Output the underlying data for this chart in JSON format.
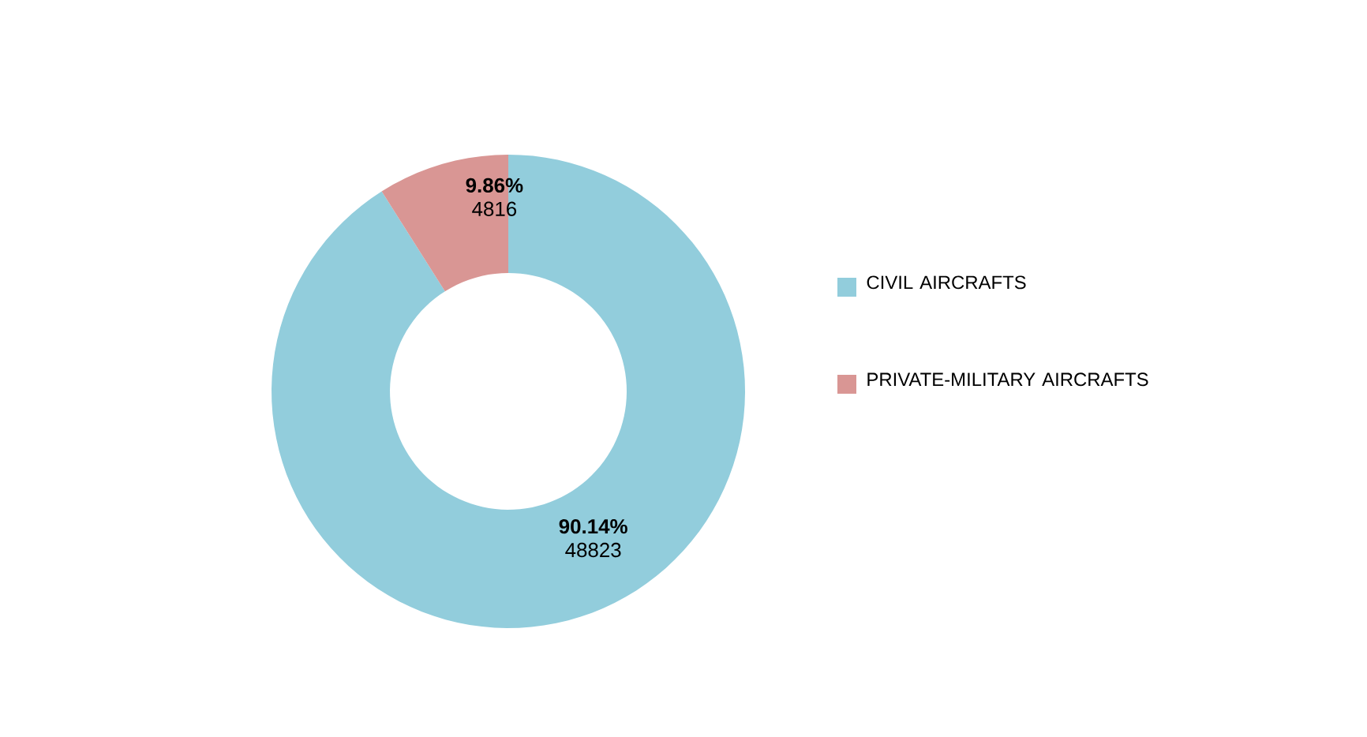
{
  "chart_data": {
    "type": "donut",
    "categories": [
      "CIVIL AIRCRAFTS",
      "PRIVATE-MILITARY AIRCRAFTS"
    ],
    "values": [
      48823,
      4816
    ],
    "colors": [
      "#92cddc",
      "#d99694"
    ],
    "value_labels": [
      "**90.14%** 48823",
      "**9.86%** 4816"
    ],
    "legend": "right"
  }
}
